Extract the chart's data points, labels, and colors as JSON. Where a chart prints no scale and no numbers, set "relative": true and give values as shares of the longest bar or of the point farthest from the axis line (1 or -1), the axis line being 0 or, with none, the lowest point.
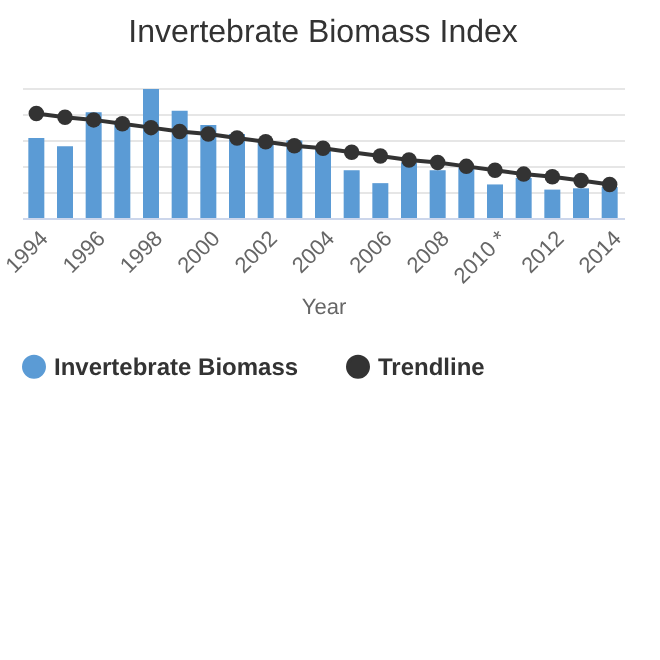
{
  "chart_data": {
    "type": "bar",
    "title": "Invertebrate Biomass Index",
    "xlabel": "Year",
    "relative": true,
    "grid": "y",
    "legend": "bottom",
    "categories": [
      "1994",
      null,
      "1996",
      null,
      "1998",
      null,
      "2000",
      null,
      "2002",
      null,
      "2004",
      null,
      "2006",
      null,
      "2008",
      null,
      "2010 *",
      null,
      "2012",
      null,
      "2014"
    ],
    "series": [
      {
        "name": "Invertebrate Biomass",
        "color": "#5b9bd5",
        "values": [
          0.62,
          0.555,
          0.82,
          0.73,
          1.0,
          0.83,
          0.72,
          0.65,
          0.59,
          0.6,
          0.54,
          0.37,
          0.27,
          0.43,
          0.37,
          0.39,
          0.26,
          0.31,
          0.22,
          0.23,
          0.24
        ]
      },
      {
        "name": "Trendline",
        "type": "line",
        "marker": "circle",
        "color": "#333333",
        "values": [
          0.81,
          0.78,
          0.76,
          0.73,
          0.7,
          0.67,
          0.65,
          0.62,
          0.59,
          0.56,
          0.54,
          0.51,
          0.48,
          0.45,
          0.43,
          0.4,
          0.37,
          0.34,
          0.32,
          0.29,
          0.26
        ]
      }
    ]
  }
}
